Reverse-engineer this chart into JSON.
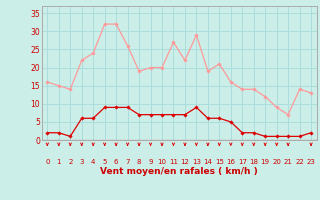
{
  "hours": [
    0,
    1,
    2,
    3,
    4,
    5,
    6,
    7,
    8,
    9,
    10,
    11,
    12,
    13,
    14,
    15,
    16,
    17,
    18,
    19,
    20,
    21,
    22,
    23
  ],
  "rafales": [
    16,
    15,
    14,
    22,
    24,
    32,
    32,
    26,
    19,
    20,
    20,
    27,
    22,
    29,
    19,
    21,
    16,
    14,
    14,
    12,
    9,
    7,
    14,
    13
  ],
  "moyen": [
    2,
    2,
    1,
    6,
    6,
    9,
    9,
    9,
    7,
    7,
    7,
    7,
    7,
    9,
    6,
    6,
    5,
    2,
    2,
    1,
    1,
    1,
    1,
    2
  ],
  "bg_color": "#cceee8",
  "grid_color": "#aadddd",
  "rafales_color": "#ff9999",
  "moyen_color": "#dd0000",
  "arrow_color": "#dd0000",
  "xlabel": "Vent moyen/en rafales ( km/h )",
  "xlabel_color": "#cc0000",
  "yticks": [
    0,
    5,
    10,
    15,
    20,
    25,
    30,
    35
  ],
  "ylim": [
    0,
    37
  ],
  "xlim": [
    -0.5,
    23.5
  ],
  "tick_color": "#cc0000",
  "spine_color": "#aaaaaa",
  "arrow_hours": [
    0,
    1,
    2,
    3,
    4,
    5,
    6,
    7,
    8,
    9,
    10,
    11,
    12,
    13,
    14,
    15,
    16,
    17,
    18,
    19,
    20,
    21,
    23
  ]
}
